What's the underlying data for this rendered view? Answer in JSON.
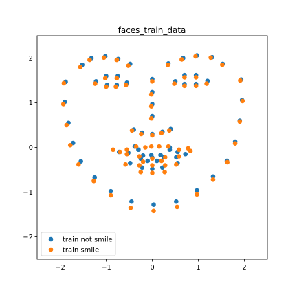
{
  "chart_data": {
    "type": "scatter",
    "title": "faces_train_data",
    "xlabel": "",
    "ylabel": "",
    "xlim": [
      -2.5,
      2.5
    ],
    "ylim": [
      -2.5,
      2.5
    ],
    "xticks": [
      -2,
      -1,
      0,
      1,
      2
    ],
    "yticks": [
      -2,
      -1,
      0,
      1,
      2
    ],
    "grid": false,
    "legend_position": "lower-left",
    "series": [
      {
        "name": "train not smile",
        "color": "#1f77b4",
        "points": [
          [
            -1.88,
            1.47
          ],
          [
            -1.9,
            1.02
          ],
          [
            -1.82,
            0.55
          ],
          [
            -1.72,
            0.1
          ],
          [
            -1.55,
            -0.31
          ],
          [
            -1.25,
            -0.67
          ],
          [
            -0.9,
            -0.98
          ],
          [
            -0.45,
            -1.21
          ],
          [
            0.03,
            -1.28
          ],
          [
            0.52,
            -1.21
          ],
          [
            0.97,
            -0.96
          ],
          [
            1.32,
            -0.65
          ],
          [
            1.62,
            -0.3
          ],
          [
            1.8,
            0.13
          ],
          [
            1.9,
            0.6
          ],
          [
            1.95,
            1.06
          ],
          [
            1.93,
            1.52
          ],
          [
            -1.52,
            1.85
          ],
          [
            -1.32,
            2.0
          ],
          [
            -1.02,
            2.04
          ],
          [
            -0.74,
            1.98
          ],
          [
            -0.48,
            1.87
          ],
          [
            0.35,
            1.88
          ],
          [
            0.67,
            2.0
          ],
          [
            0.97,
            2.06
          ],
          [
            1.3,
            2.02
          ],
          [
            1.53,
            1.87
          ],
          [
            -1.22,
            1.48
          ],
          [
            -1.0,
            1.6
          ],
          [
            -0.75,
            1.6
          ],
          [
            -0.55,
            1.45
          ],
          [
            -0.77,
            1.4
          ],
          [
            -0.98,
            1.4
          ],
          [
            0.5,
            1.48
          ],
          [
            0.7,
            1.62
          ],
          [
            0.95,
            1.62
          ],
          [
            1.2,
            1.49
          ],
          [
            0.95,
            1.42
          ],
          [
            0.7,
            1.42
          ],
          [
            0.0,
            1.53
          ],
          [
            0.0,
            1.24
          ],
          [
            0.0,
            0.97
          ],
          [
            0.0,
            0.7
          ],
          [
            -0.4,
            0.4
          ],
          [
            -0.22,
            0.33
          ],
          [
            0.0,
            0.3
          ],
          [
            0.22,
            0.35
          ],
          [
            0.4,
            0.41
          ],
          [
            -0.72,
            -0.1
          ],
          [
            -0.52,
            -0.12
          ],
          [
            -0.3,
            -0.05
          ],
          [
            -0.2,
            -0.18
          ],
          [
            -0.02,
            -0.17
          ],
          [
            0.18,
            -0.17
          ],
          [
            0.38,
            -0.05
          ],
          [
            0.55,
            -0.1
          ],
          [
            0.72,
            -0.15
          ],
          [
            0.52,
            -0.22
          ],
          [
            -0.48,
            -0.35
          ],
          [
            -0.22,
            -0.45
          ],
          [
            0.0,
            -0.48
          ],
          [
            0.22,
            -0.45
          ],
          [
            0.55,
            -0.35
          ],
          [
            -0.25,
            -0.25
          ],
          [
            0.0,
            -0.23
          ],
          [
            0.25,
            -0.22
          ],
          [
            -0.38,
            0.02
          ],
          [
            0.38,
            0.0
          ],
          [
            -0.1,
            -0.3
          ],
          [
            0.1,
            -0.3
          ]
        ]
      },
      {
        "name": "train smile",
        "color": "#ff7f0e",
        "points": [
          [
            -1.92,
            1.44
          ],
          [
            -1.93,
            0.97
          ],
          [
            -1.86,
            0.5
          ],
          [
            -1.78,
            0.05
          ],
          [
            -1.6,
            -0.38
          ],
          [
            -1.27,
            -0.75
          ],
          [
            -0.9,
            -1.07
          ],
          [
            -0.47,
            -1.35
          ],
          [
            0.03,
            -1.42
          ],
          [
            0.54,
            -1.33
          ],
          [
            0.97,
            -1.05
          ],
          [
            1.32,
            -0.72
          ],
          [
            1.63,
            -0.33
          ],
          [
            1.8,
            0.09
          ],
          [
            1.9,
            0.58
          ],
          [
            1.96,
            1.04
          ],
          [
            1.91,
            1.5
          ],
          [
            -1.56,
            1.8
          ],
          [
            -1.36,
            1.96
          ],
          [
            -1.05,
            2.01
          ],
          [
            -0.77,
            1.96
          ],
          [
            -0.52,
            1.83
          ],
          [
            0.34,
            1.85
          ],
          [
            0.64,
            1.97
          ],
          [
            0.94,
            2.04
          ],
          [
            1.27,
            2.01
          ],
          [
            1.52,
            1.85
          ],
          [
            -1.24,
            1.43
          ],
          [
            -1.02,
            1.55
          ],
          [
            -0.77,
            1.55
          ],
          [
            -0.57,
            1.4
          ],
          [
            -0.79,
            1.36
          ],
          [
            -1.0,
            1.36
          ],
          [
            0.48,
            1.43
          ],
          [
            0.7,
            1.57
          ],
          [
            0.95,
            1.57
          ],
          [
            1.18,
            1.43
          ],
          [
            0.95,
            1.38
          ],
          [
            0.7,
            1.38
          ],
          [
            0.0,
            1.48
          ],
          [
            -0.02,
            1.19
          ],
          [
            -0.02,
            0.92
          ],
          [
            -0.02,
            0.65
          ],
          [
            -0.44,
            0.38
          ],
          [
            -0.24,
            0.3
          ],
          [
            0.0,
            0.27
          ],
          [
            0.2,
            0.32
          ],
          [
            0.37,
            0.38
          ],
          [
            -0.85,
            -0.05
          ],
          [
            -0.7,
            -0.1
          ],
          [
            -0.55,
            -0.05
          ],
          [
            -0.35,
            0.02
          ],
          [
            -0.15,
            0.0
          ],
          [
            -0.02,
            0.02
          ],
          [
            0.15,
            0.02
          ],
          [
            0.35,
            0.02
          ],
          [
            0.58,
            -0.05
          ],
          [
            0.78,
            -0.02
          ],
          [
            0.83,
            -0.08
          ],
          [
            -0.55,
            -0.15
          ],
          [
            -0.28,
            -0.2
          ],
          [
            0.0,
            -0.25
          ],
          [
            0.28,
            -0.22
          ],
          [
            0.58,
            -0.2
          ],
          [
            -0.58,
            -0.38
          ],
          [
            -0.28,
            -0.4
          ],
          [
            0.0,
            -0.4
          ],
          [
            0.28,
            -0.4
          ],
          [
            0.52,
            -0.38
          ],
          [
            -0.25,
            -0.55
          ],
          [
            0.0,
            -0.57
          ],
          [
            0.27,
            -0.55
          ],
          [
            -0.2,
            -0.32
          ],
          [
            0.2,
            -0.3
          ]
        ]
      }
    ]
  }
}
